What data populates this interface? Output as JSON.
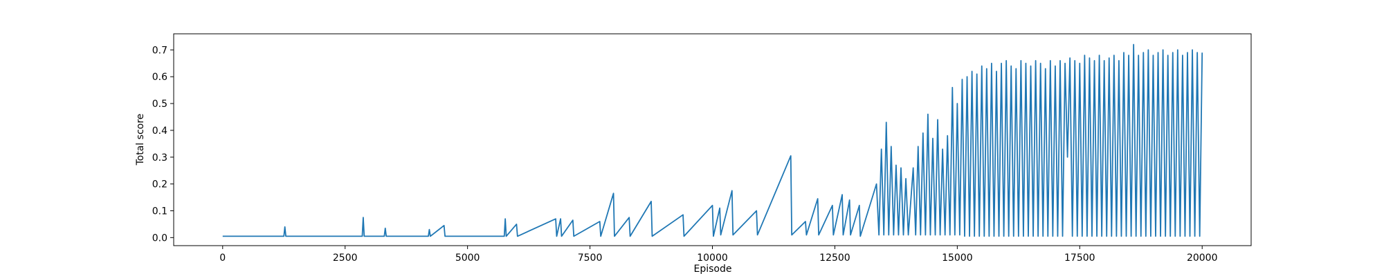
{
  "chart_data": {
    "type": "line",
    "xlabel": "Episode",
    "ylabel": "Total score",
    "xlim": [
      -1000,
      21000
    ],
    "ylim": [
      -0.03,
      0.76
    ],
    "xticks": [
      0,
      2500,
      5000,
      7500,
      10000,
      12500,
      15000,
      17500,
      20000
    ],
    "yticks": [
      {
        "value": 0,
        "label": "0.0"
      },
      0.1,
      0.2,
      0.3,
      0.4,
      0.5,
      0.6,
      0.7
    ],
    "series": [
      {
        "color": "#1f77b4",
        "x": [
          0,
          1250,
          1270,
          1290,
          2850,
          2870,
          2890,
          3300,
          3320,
          3340,
          4200,
          4220,
          4240,
          4520,
          4540,
          5750,
          5770,
          5790,
          6000,
          6020,
          6800,
          6820,
          6900,
          6920,
          7150,
          7170,
          7700,
          7720,
          7980,
          8000,
          8300,
          8320,
          8750,
          8770,
          9400,
          9420,
          10000,
          10020,
          10150,
          10170,
          10400,
          10420,
          10900,
          10920,
          11600,
          11620,
          11900,
          11920,
          12150,
          12170,
          12450,
          12470,
          12650,
          12670,
          12800,
          12820,
          13000,
          13020,
          13350,
          13400,
          13450,
          13500,
          13550,
          13600,
          13650,
          13700,
          13750,
          13800,
          13850,
          13900,
          13950,
          14000,
          14100,
          14150,
          14200,
          14250,
          14300,
          14350,
          14400,
          14450,
          14500,
          14550,
          14600,
          14650,
          14700,
          14750,
          14800,
          14850,
          14900,
          14950,
          15000,
          15050,
          15100,
          15150,
          15200,
          15250,
          15300,
          15350,
          15400,
          15450,
          15500,
          15550,
          15600,
          15650,
          15700,
          15750,
          15800,
          15850,
          15900,
          15950,
          16000,
          16050,
          16100,
          16150,
          16200,
          16250,
          16300,
          16350,
          16400,
          16450,
          16500,
          16550,
          16600,
          16650,
          16700,
          16750,
          16800,
          16850,
          16900,
          16950,
          17000,
          17050,
          17100,
          17150,
          17200,
          17250,
          17300,
          17350,
          17400,
          17450,
          17500,
          17550,
          17600,
          17650,
          17700,
          17750,
          17800,
          17850,
          17900,
          17950,
          18000,
          18050,
          18100,
          18150,
          18200,
          18250,
          18300,
          18350,
          18400,
          18450,
          18500,
          18550,
          18600,
          18650,
          18700,
          18750,
          18800,
          18850,
          18900,
          18950,
          19000,
          19050,
          19100,
          19150,
          19200,
          19250,
          19300,
          19350,
          19400,
          19450,
          19500,
          19550,
          19600,
          19650,
          19700,
          19750,
          19800,
          19850,
          19900,
          19950,
          20000
        ],
        "values": [
          0.005,
          0.005,
          0.04,
          0.005,
          0.005,
          0.075,
          0.005,
          0.005,
          0.035,
          0.005,
          0.005,
          0.03,
          0.005,
          0.045,
          0.005,
          0.005,
          0.07,
          0.005,
          0.05,
          0.005,
          0.07,
          0.005,
          0.07,
          0.005,
          0.065,
          0.005,
          0.06,
          0.005,
          0.165,
          0.005,
          0.075,
          0.005,
          0.135,
          0.005,
          0.085,
          0.005,
          0.12,
          0.005,
          0.11,
          0.01,
          0.175,
          0.01,
          0.1,
          0.01,
          0.305,
          0.01,
          0.06,
          0.01,
          0.145,
          0.01,
          0.12,
          0.01,
          0.16,
          0.01,
          0.14,
          0.01,
          0.12,
          0.005,
          0.2,
          0.01,
          0.33,
          0.01,
          0.43,
          0.01,
          0.34,
          0.01,
          0.27,
          0.01,
          0.26,
          0.01,
          0.22,
          0.01,
          0.26,
          0.01,
          0.34,
          0.01,
          0.39,
          0.01,
          0.46,
          0.01,
          0.37,
          0.01,
          0.44,
          0.01,
          0.33,
          0.01,
          0.38,
          0.01,
          0.56,
          0.01,
          0.5,
          0.01,
          0.59,
          0.005,
          0.6,
          0.005,
          0.62,
          0.005,
          0.61,
          0.005,
          0.64,
          0.005,
          0.63,
          0.005,
          0.65,
          0.005,
          0.62,
          0.005,
          0.65,
          0.005,
          0.66,
          0.005,
          0.64,
          0.005,
          0.63,
          0.005,
          0.66,
          0.005,
          0.65,
          0.005,
          0.64,
          0.005,
          0.66,
          0.005,
          0.65,
          0.005,
          0.63,
          0.005,
          0.66,
          0.005,
          0.64,
          0.005,
          0.66,
          0.005,
          0.65,
          0.3,
          0.67,
          0.005,
          0.66,
          0.005,
          0.65,
          0.005,
          0.68,
          0.005,
          0.67,
          0.005,
          0.66,
          0.005,
          0.68,
          0.005,
          0.66,
          0.005,
          0.67,
          0.005,
          0.68,
          0.005,
          0.66,
          0.005,
          0.69,
          0.005,
          0.68,
          0.005,
          0.72,
          0.005,
          0.68,
          0.005,
          0.69,
          0.005,
          0.7,
          0.005,
          0.68,
          0.005,
          0.69,
          0.005,
          0.7,
          0.005,
          0.68,
          0.005,
          0.69,
          0.005,
          0.7,
          0.005,
          0.68,
          0.005,
          0.69,
          0.005,
          0.7,
          0.005,
          0.69,
          0.005,
          0.69
        ]
      }
    ]
  }
}
